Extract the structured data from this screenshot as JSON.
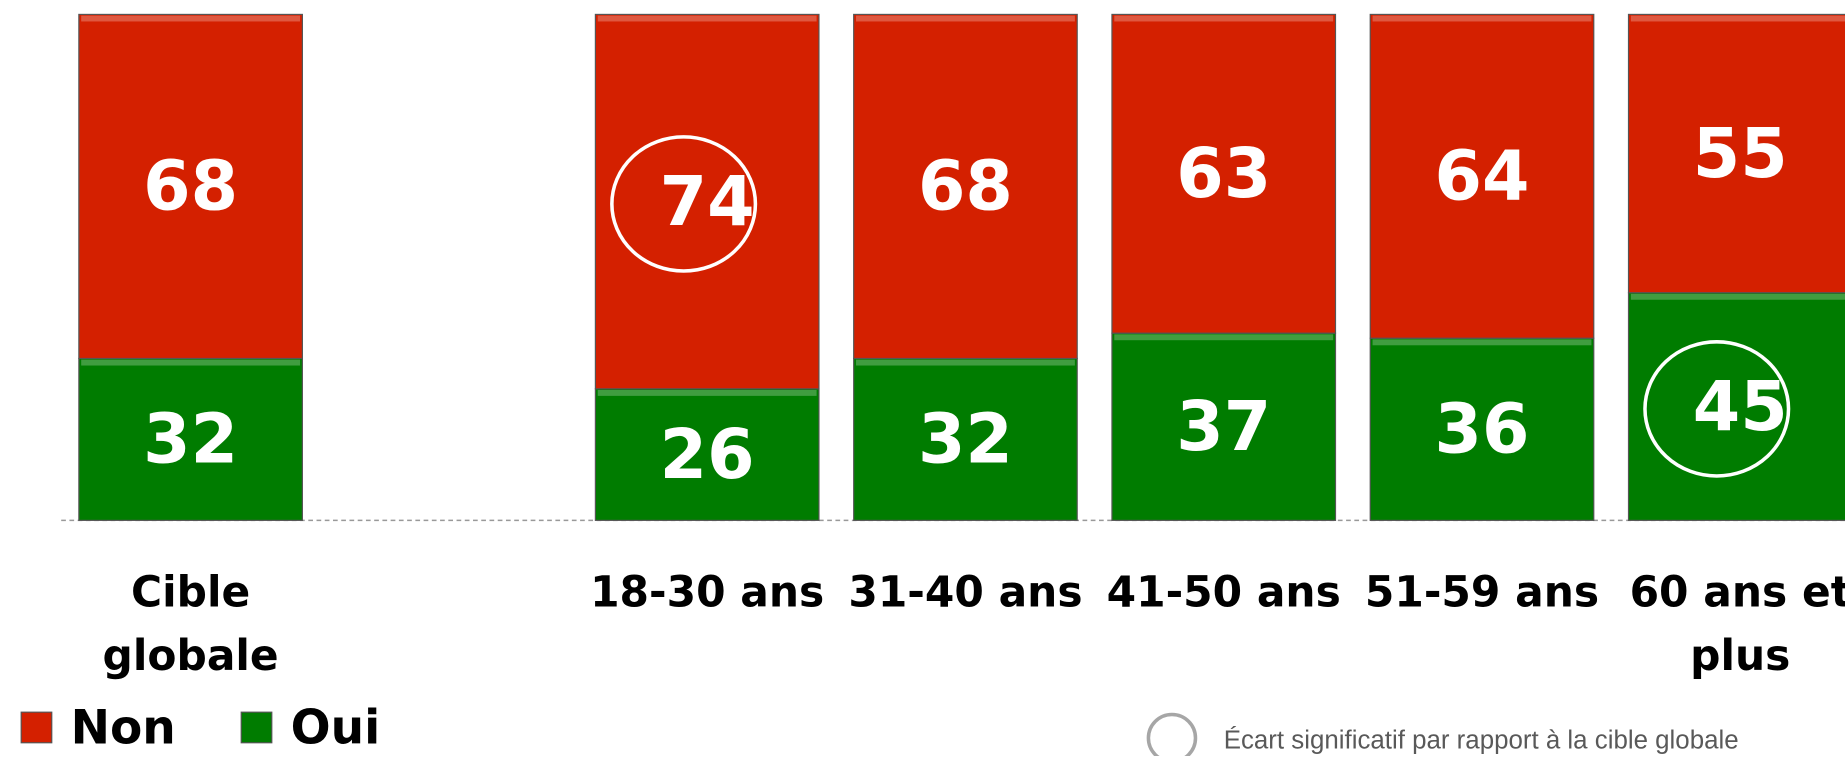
{
  "chart_data": {
    "type": "stacked_bar",
    "categories": [
      "Cible globale",
      "18-30 ans",
      "31-40 ans",
      "41-50 ans",
      "51-59 ans",
      "60 ans et plus"
    ],
    "series": [
      {
        "name": "Oui",
        "color": "#007c00",
        "values": [
          32,
          26,
          32,
          37,
          36,
          45
        ],
        "significant": [
          false,
          false,
          false,
          false,
          false,
          true
        ]
      },
      {
        "name": "Non",
        "color": "#d42000",
        "values": [
          68,
          74,
          68,
          63,
          64,
          55
        ],
        "significant": [
          false,
          true,
          false,
          false,
          false,
          false
        ]
      }
    ],
    "legend_order": [
      1,
      0
    ],
    "ylim": [
      0,
      100
    ],
    "note": "Écart significatif par rapport à la cible globale"
  }
}
